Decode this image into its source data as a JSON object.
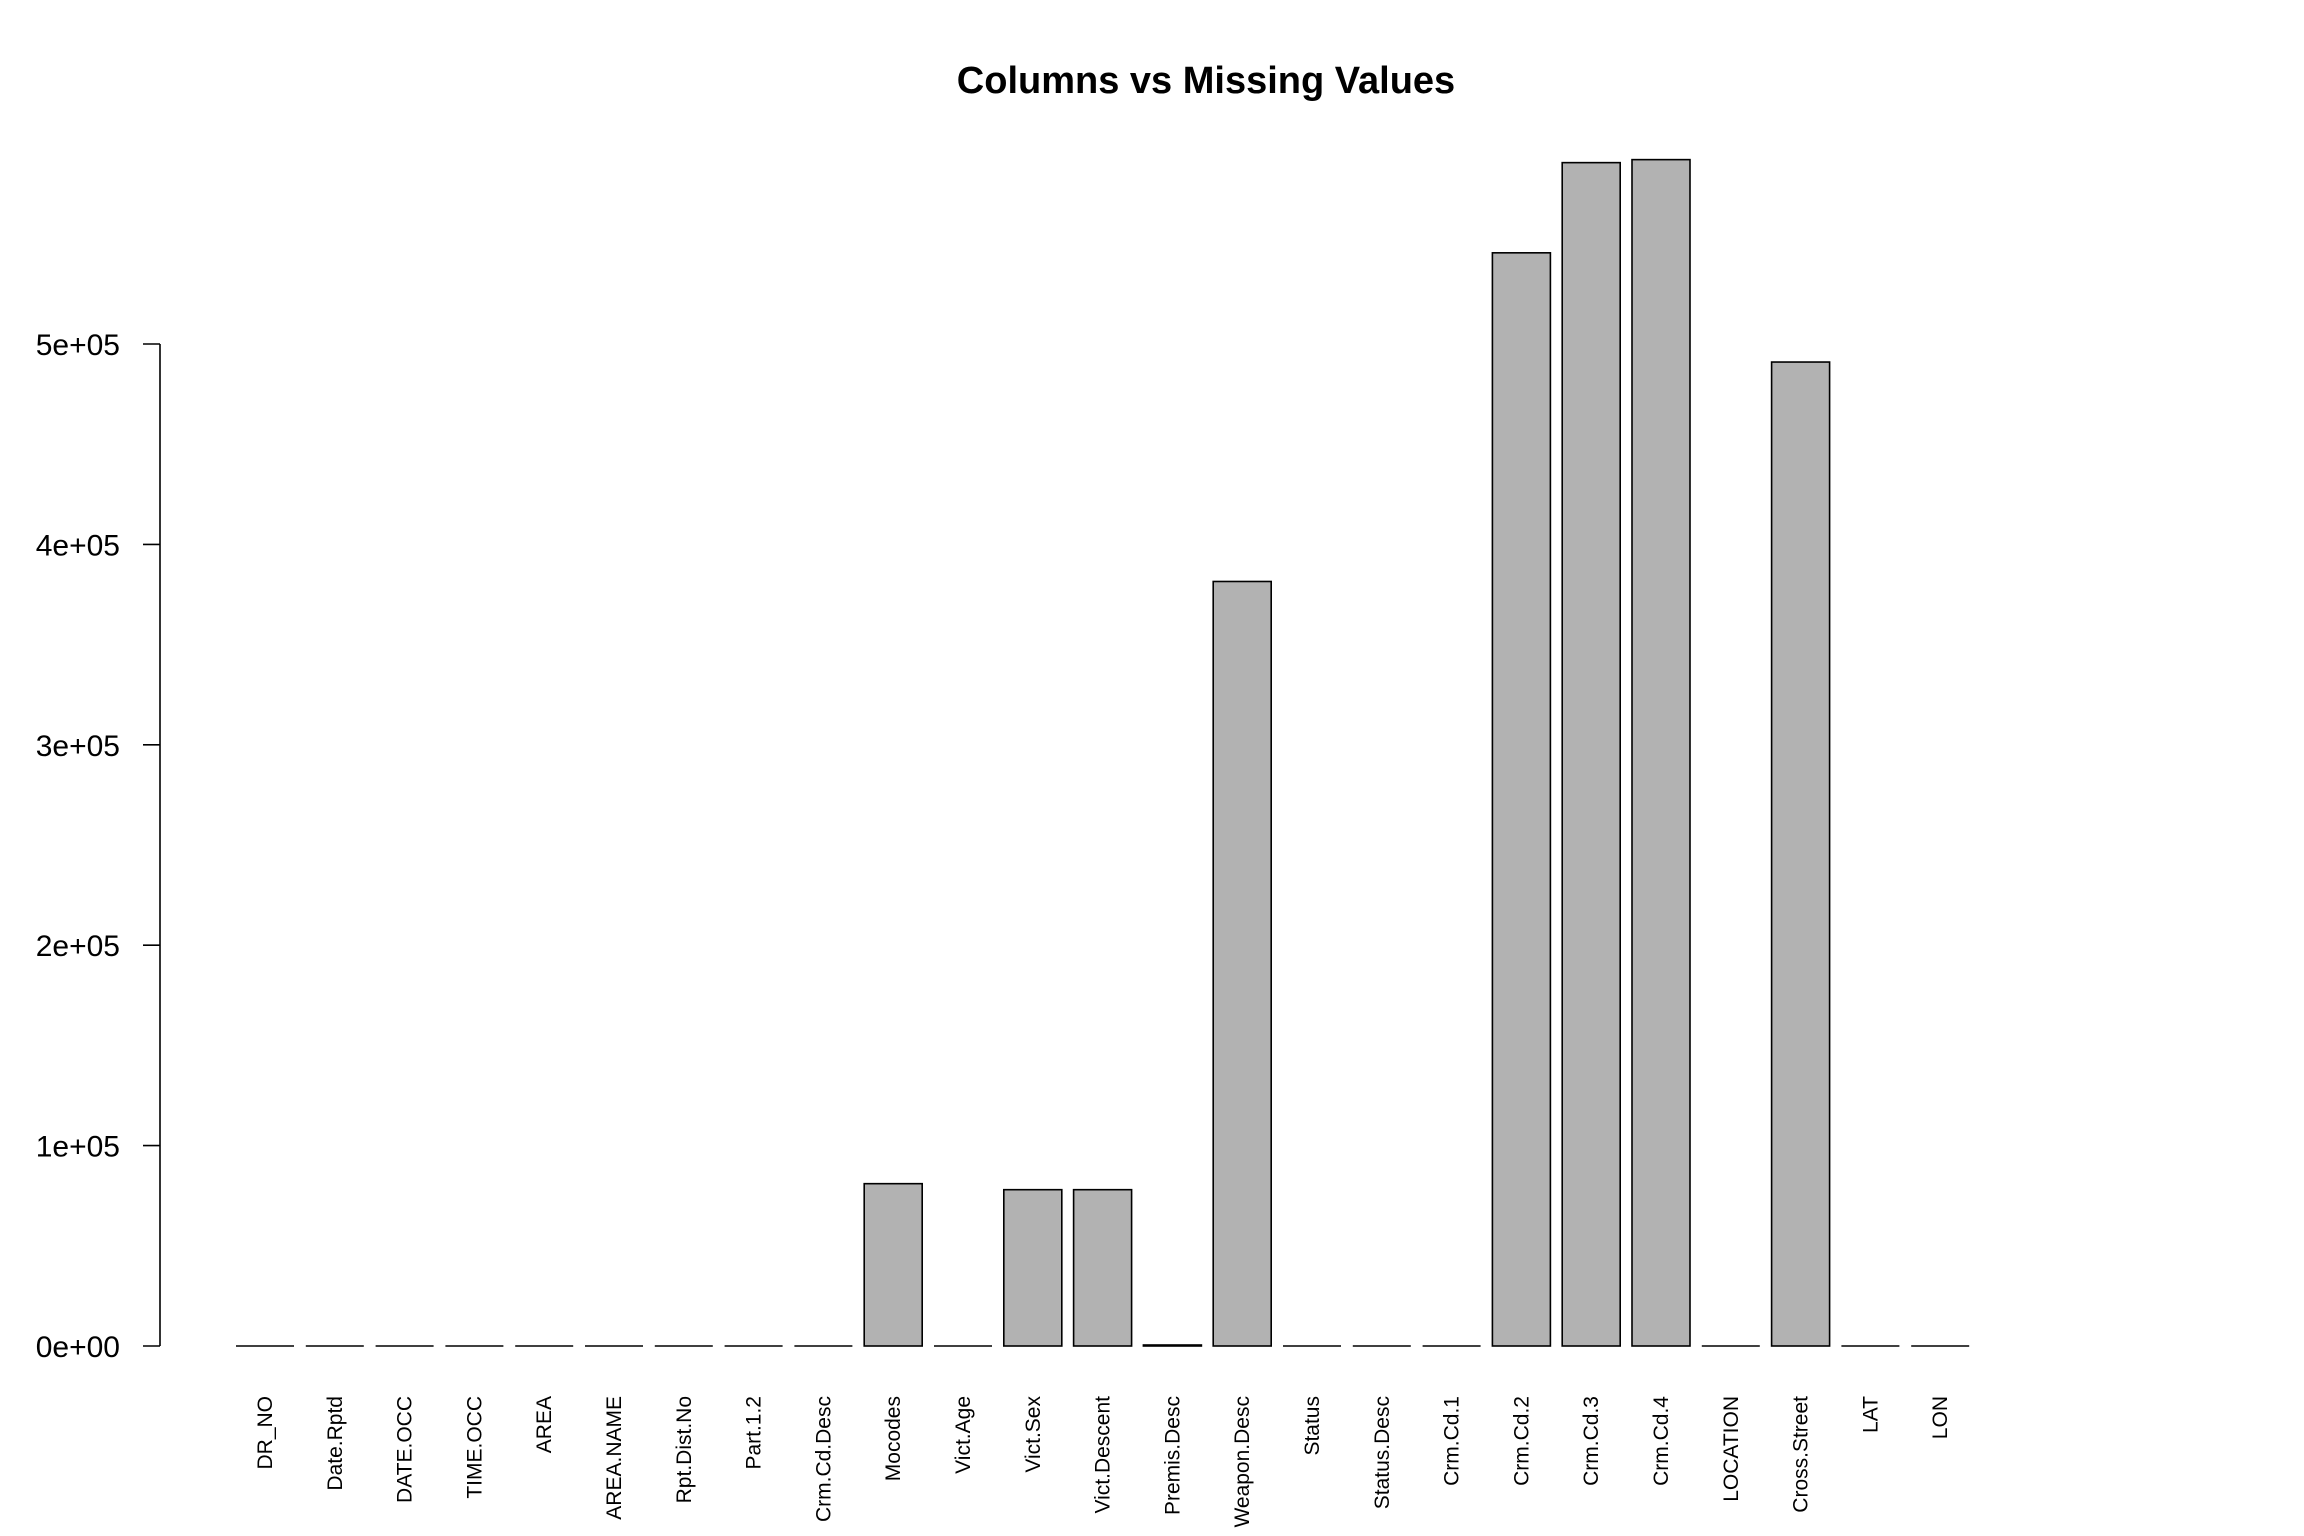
{
  "chart_data": {
    "type": "bar",
    "title": "Columns vs Missing Values",
    "xlabel": "",
    "ylabel": "",
    "categories": [
      "DR_NO",
      "Date.Rptd",
      "DATE.OCC",
      "TIME.OCC",
      "AREA",
      "AREA.NAME",
      "Rpt.Dist.No",
      "Part.1.2",
      "Crm.Cd.Desc",
      "Mocodes",
      "Vict.Age",
      "Vict.Sex",
      "Vict.Descent",
      "Premis.Desc",
      "Weapon.Desc",
      "Status",
      "Status.Desc",
      "Crm.Cd.1",
      "Crm.Cd.2",
      "Crm.Cd.3",
      "Crm.Cd.4",
      "LOCATION",
      "Cross.Street",
      "LAT",
      "LON"
    ],
    "values": [
      0,
      0,
      0,
      0,
      0,
      0,
      0,
      0,
      0,
      81000,
      0,
      78000,
      78000,
      500,
      381500,
      0,
      0,
      10,
      545500,
      590500,
      592000,
      0,
      491000,
      0,
      0
    ],
    "ylim": [
      0,
      592000
    ],
    "yticks": [
      0,
      100000,
      200000,
      300000,
      400000,
      500000
    ],
    "ytick_labels": [
      "0e+00",
      "1e+05",
      "2e+05",
      "3e+05",
      "4e+05",
      "5e+05"
    ],
    "grid": false,
    "legend": "none"
  }
}
